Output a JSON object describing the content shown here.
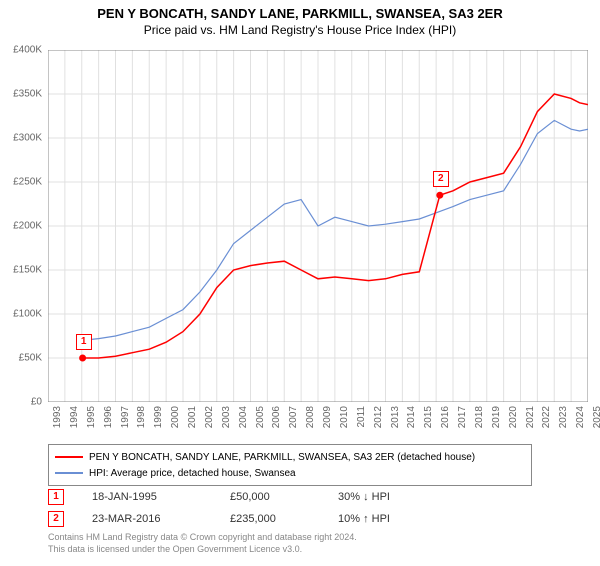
{
  "title_line1": "PEN Y BONCATH, SANDY LANE, PARKMILL, SWANSEA, SA3 2ER",
  "title_line2": "Price paid vs. HM Land Registry's House Price Index (HPI)",
  "chart": {
    "type": "line",
    "background_color": "#ffffff",
    "grid_color": "#e0e0e0",
    "axis_color": "#888888",
    "xlim": [
      1993,
      2025
    ],
    "ylim": [
      0,
      400000
    ],
    "ytick_step": 50000,
    "y_ticks": [
      "£0",
      "£50K",
      "£100K",
      "£150K",
      "£200K",
      "£250K",
      "£300K",
      "£350K",
      "£400K"
    ],
    "x_ticks": [
      "1993",
      "1994",
      "1995",
      "1996",
      "1997",
      "1998",
      "1999",
      "2000",
      "2001",
      "2002",
      "2003",
      "2004",
      "2005",
      "2006",
      "2007",
      "2008",
      "2009",
      "2010",
      "2011",
      "2012",
      "2013",
      "2014",
      "2015",
      "2016",
      "2017",
      "2018",
      "2019",
      "2020",
      "2021",
      "2022",
      "2023",
      "2024",
      "2025"
    ],
    "tick_fontsize": 10,
    "tick_color": "#666666",
    "series": [
      {
        "name": "PEN Y BONCATH, SANDY LANE, PARKMILL, SWANSEA, SA3 2ER (detached house)",
        "color": "#ff0000",
        "line_width": 1.5,
        "data": [
          [
            1995.05,
            50000
          ],
          [
            1996,
            50000
          ],
          [
            1997,
            52000
          ],
          [
            1998,
            56000
          ],
          [
            1999,
            60000
          ],
          [
            2000,
            68000
          ],
          [
            2001,
            80000
          ],
          [
            2002,
            100000
          ],
          [
            2003,
            130000
          ],
          [
            2004,
            150000
          ],
          [
            2005,
            155000
          ],
          [
            2006,
            158000
          ],
          [
            2007,
            160000
          ],
          [
            2008,
            150000
          ],
          [
            2009,
            140000
          ],
          [
            2010,
            142000
          ],
          [
            2011,
            140000
          ],
          [
            2012,
            138000
          ],
          [
            2013,
            140000
          ],
          [
            2014,
            145000
          ],
          [
            2015,
            148000
          ],
          [
            2016.22,
            235000
          ],
          [
            2017,
            240000
          ],
          [
            2018,
            250000
          ],
          [
            2019,
            255000
          ],
          [
            2020,
            260000
          ],
          [
            2021,
            290000
          ],
          [
            2022,
            330000
          ],
          [
            2023,
            350000
          ],
          [
            2024,
            345000
          ],
          [
            2024.5,
            340000
          ],
          [
            2025,
            338000
          ]
        ]
      },
      {
        "name": "HPI: Average price, detached house, Swansea",
        "color": "#6a8fd4",
        "line_width": 1.2,
        "data": [
          [
            1995,
            70000
          ],
          [
            1996,
            72000
          ],
          [
            1997,
            75000
          ],
          [
            1998,
            80000
          ],
          [
            1999,
            85000
          ],
          [
            2000,
            95000
          ],
          [
            2001,
            105000
          ],
          [
            2002,
            125000
          ],
          [
            2003,
            150000
          ],
          [
            2004,
            180000
          ],
          [
            2005,
            195000
          ],
          [
            2006,
            210000
          ],
          [
            2007,
            225000
          ],
          [
            2008,
            230000
          ],
          [
            2009,
            200000
          ],
          [
            2010,
            210000
          ],
          [
            2011,
            205000
          ],
          [
            2012,
            200000
          ],
          [
            2013,
            202000
          ],
          [
            2014,
            205000
          ],
          [
            2015,
            208000
          ],
          [
            2016,
            215000
          ],
          [
            2017,
            222000
          ],
          [
            2018,
            230000
          ],
          [
            2019,
            235000
          ],
          [
            2020,
            240000
          ],
          [
            2021,
            270000
          ],
          [
            2022,
            305000
          ],
          [
            2023,
            320000
          ],
          [
            2024,
            310000
          ],
          [
            2024.5,
            308000
          ],
          [
            2025,
            310000
          ]
        ]
      }
    ],
    "markers": [
      {
        "label": "1",
        "x": 1995.05,
        "y": 50000,
        "color": "#ff0000"
      },
      {
        "label": "2",
        "x": 2016.22,
        "y": 235000,
        "color": "#ff0000"
      }
    ]
  },
  "legend": {
    "border_color": "#888888",
    "fontsize": 10,
    "items": [
      {
        "color": "#ff0000",
        "label": "PEN Y BONCATH, SANDY LANE, PARKMILL, SWANSEA, SA3 2ER (detached house)"
      },
      {
        "color": "#6a8fd4",
        "label": "HPI: Average price, detached house, Swansea"
      }
    ]
  },
  "data_rows": [
    {
      "marker": "1",
      "date": "18-JAN-1995",
      "price": "£50,000",
      "pct": "30% ↓ HPI"
    },
    {
      "marker": "2",
      "date": "23-MAR-2016",
      "price": "£235,000",
      "pct": "10% ↑ HPI"
    }
  ],
  "footer_line1": "Contains HM Land Registry data © Crown copyright and database right 2024.",
  "footer_line2": "This data is licensed under the Open Government Licence v3.0."
}
